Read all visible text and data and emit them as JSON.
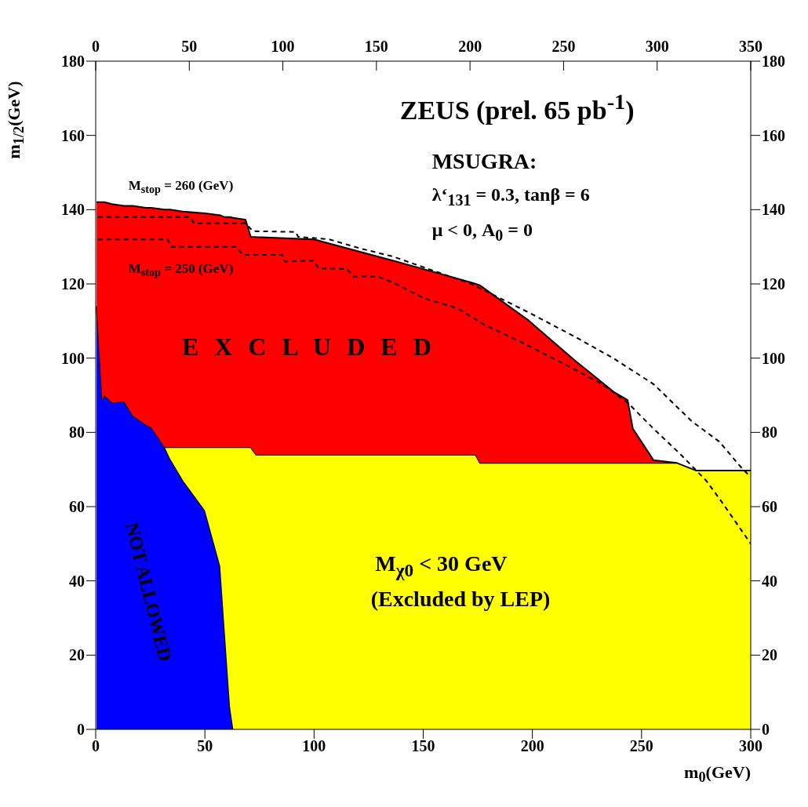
{
  "chart_data": {
    "type": "area",
    "stacked": true,
    "xlabel": "m$_{0}$(GeV)",
    "ylabel": "m$_{1/2}$(GeV)",
    "x": [
      0.4,
      3,
      4,
      7.5,
      13,
      17,
      23,
      25.5,
      31.6,
      34,
      40,
      50,
      57,
      59,
      61.5,
      63,
      68.6,
      71,
      73.5,
      100,
      136,
      172,
      174,
      176,
      198,
      219.6,
      237.5,
      243.6,
      246,
      255.5,
      266,
      275,
      300
    ],
    "series": [
      {
        "color": "#0000ff",
        "values": [
          114,
          88.7,
          90,
          88,
          88.3,
          84.5,
          82,
          81.3,
          76,
          73,
          67,
          59,
          44,
          27,
          6,
          0,
          0,
          0,
          0,
          0,
          0,
          0,
          0,
          0,
          0,
          0,
          0,
          0,
          0,
          0,
          0,
          0,
          0
        ]
      },
      {
        "color": "#ffff00",
        "values": [
          null,
          null,
          null,
          null,
          null,
          null,
          null,
          null,
          0,
          3,
          9,
          17,
          32,
          49,
          70,
          76,
          76,
          76,
          74,
          74,
          74,
          74,
          74,
          71.8,
          71.8,
          71.8,
          71.8,
          71.8,
          71.8,
          71.8,
          71.8,
          69.7,
          69.7
        ]
      },
      {
        "color": "#ff0000",
        "values": [
          28,
          53.3,
          52,
          53.5,
          52.7,
          56.5,
          58.5,
          59.2,
          64,
          64,
          63.5,
          63,
          62.5,
          62,
          62,
          61.8,
          61.3,
          56.7,
          58.6,
          58,
          52.3,
          46.4,
          46,
          47.8,
          38.5,
          27.5,
          19,
          16.9,
          9.2,
          0.7,
          0,
          null,
          null
        ]
      },
      {
        "type": "line",
        "name": "M$_{stop}$ = 260 (GeV)",
        "color": "#000000",
        "line_style": "dashed",
        "x": [
          1,
          43.5,
          45,
          68.6,
          72,
          91.6,
          92.7,
          107,
          121.5,
          136,
          172,
          198,
          220,
          237,
          255.5,
          273,
          285.6,
          296,
          300
        ],
        "values": [
          138,
          138,
          136.3,
          136.3,
          134.2,
          134,
          132.7,
          132,
          129.5,
          127.4,
          120,
          112.4,
          105.6,
          100,
          93,
          83,
          77.5,
          70.3,
          68
        ]
      },
      {
        "type": "line",
        "name": "M$_{stop}$ = 250 (GeV)",
        "color": "#000000",
        "line_style": "dashed",
        "x": [
          1,
          33,
          34.5,
          64,
          67.5,
          85.5,
          86.6,
          100,
          102,
          115,
          118,
          129,
          136,
          150,
          165.7,
          178,
          196,
          214,
          232,
          243.6,
          255.5,
          268,
          279.6,
          286.7,
          300
        ],
        "values": [
          132,
          132,
          130,
          130,
          127.8,
          127.8,
          126,
          126.3,
          124.2,
          124,
          122,
          122,
          120.4,
          116.2,
          113.4,
          109,
          104,
          98.6,
          93,
          88,
          81,
          74,
          67,
          61.3,
          50
        ]
      }
    ],
    "marker": "none",
    "xlim": [
      0,
      300
    ],
    "xticks": [
      0,
      50,
      100,
      150,
      200,
      250,
      300
    ],
    "x2lim": [
      0,
      350
    ],
    "x2ticks": [
      0,
      50,
      100,
      150,
      200,
      250,
      300,
      350
    ],
    "ylim": [
      0,
      180
    ],
    "yticks": [
      0,
      20,
      40,
      60,
      80,
      100,
      120,
      140,
      160,
      180
    ],
    "y2lim": [
      0,
      180
    ],
    "y2ticks": [
      0,
      20,
      40,
      60,
      80,
      100,
      120,
      140,
      160,
      180
    ],
    "grid": false,
    "legend": false,
    "annotations": [
      "ZEUS (prel. 65 pb$^{-1}$)",
      "MSUGRA:",
      "λ‘$_{131}$ = 0.3, tanβ = 6",
      "μ < 0, A$_{0}$ = 0",
      "E X C L U D E D",
      "NOT ALLOWED",
      "M$_{χ0}$ < 30 GeV",
      "(Excluded by LEP)"
    ]
  }
}
